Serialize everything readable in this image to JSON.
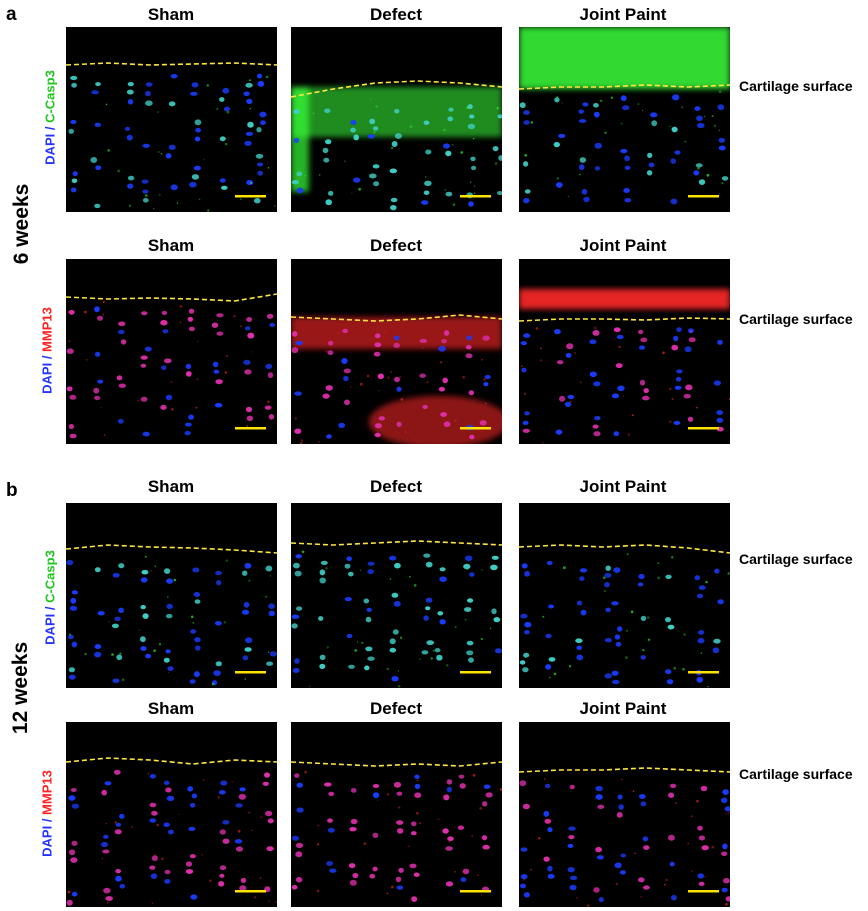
{
  "panel_labels": [
    "a",
    "b"
  ],
  "time_labels": [
    "6 weeks",
    "12 weeks"
  ],
  "column_titles": [
    "Sham",
    "Defect",
    "Joint Paint"
  ],
  "stain_rows": [
    {
      "dapi": "DAPI",
      "sep": " / ",
      "marker": "C-Casp3",
      "marker_color": "#2fd62f"
    },
    {
      "dapi": "DAPI",
      "sep": " / ",
      "marker": "MMP13",
      "marker_color": "#ff2020"
    }
  ],
  "surface_label": "Cartilage surface",
  "colors": {
    "dapi": "#1a3cff",
    "casp3": "#38ff38",
    "mmp13": "#ff2a2a",
    "surface_line": "#ffe640",
    "scale_bar": "#ffe300",
    "background": "#000000"
  }
}
